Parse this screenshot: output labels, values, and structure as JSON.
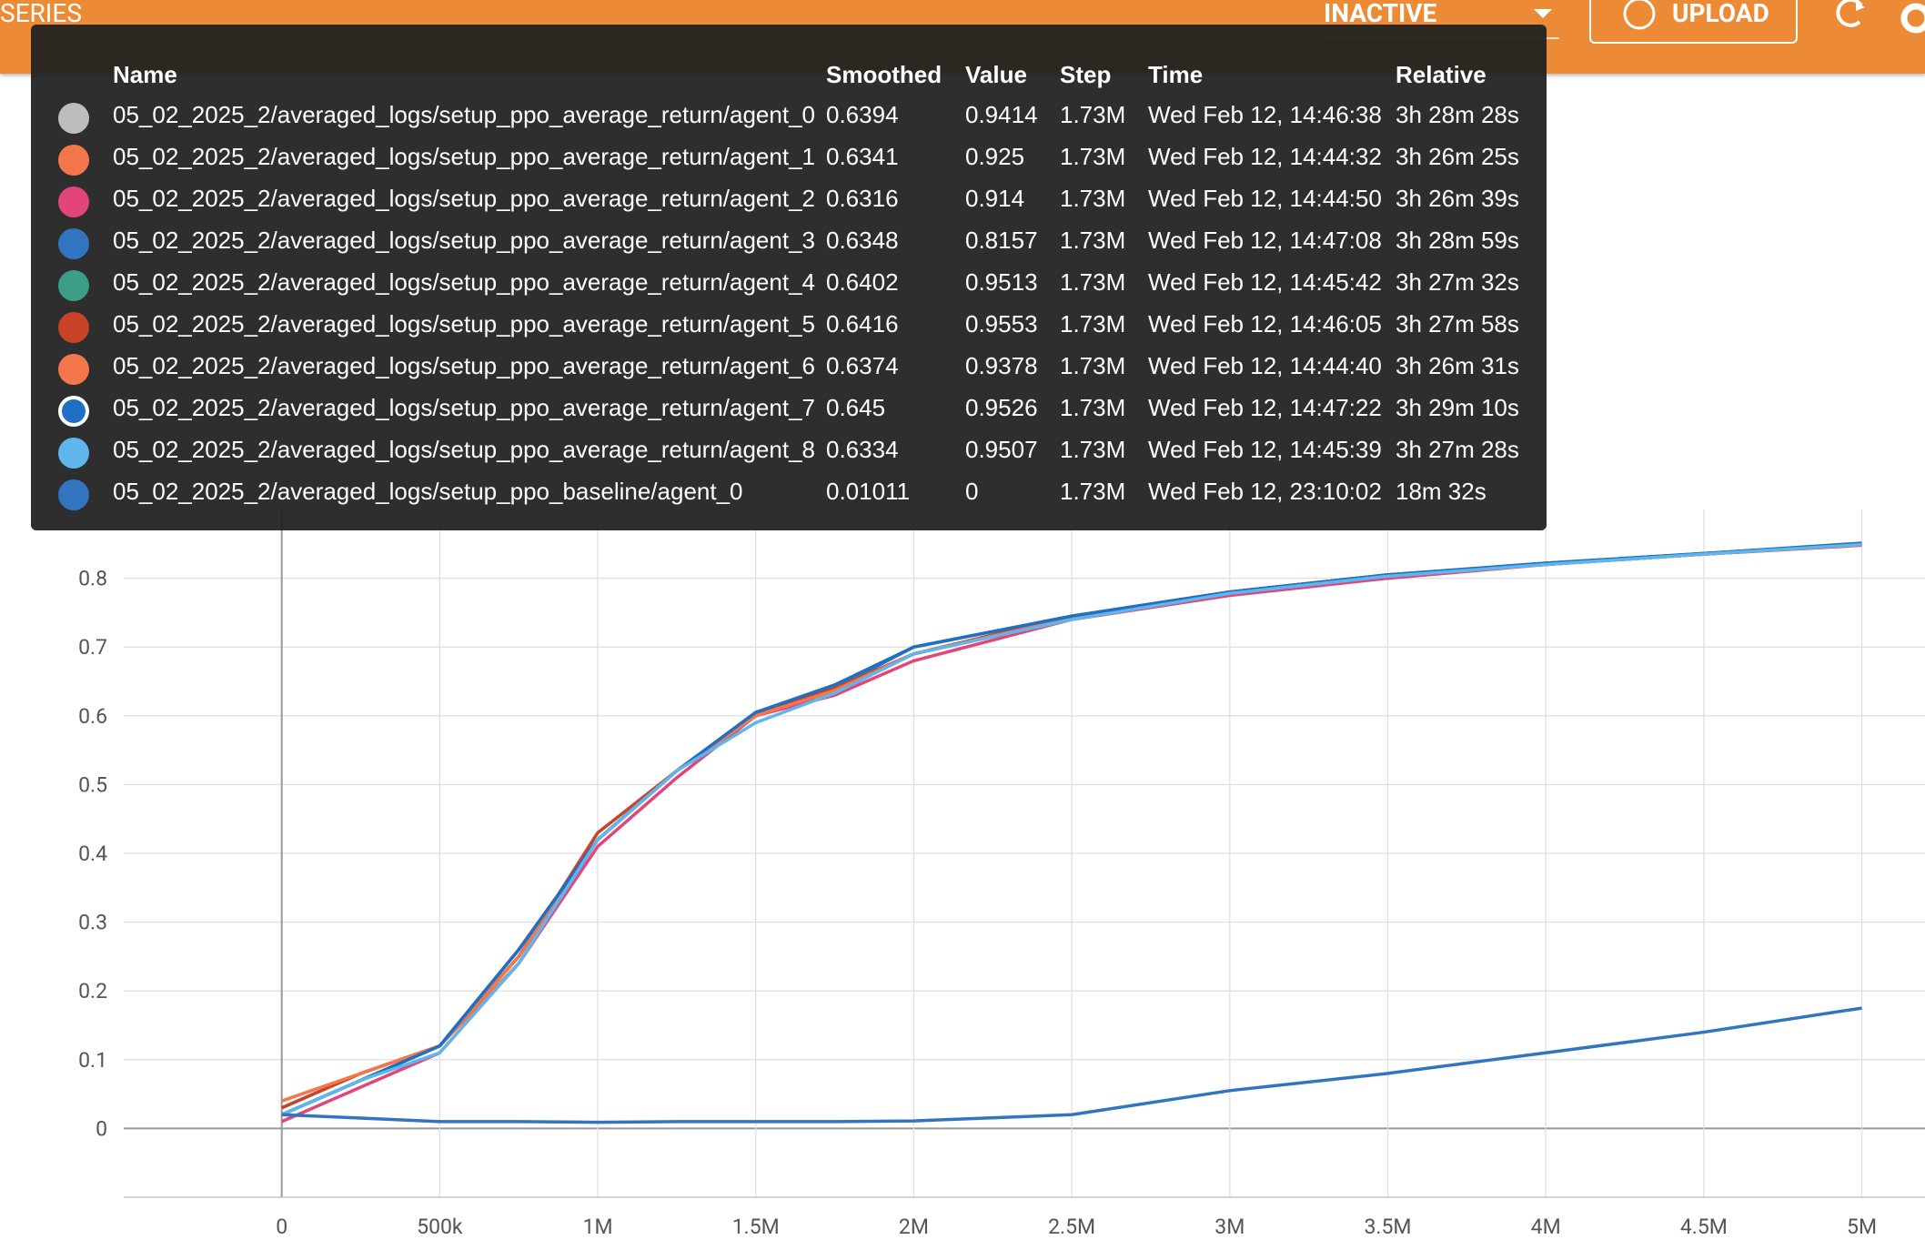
{
  "header": {
    "title": "SERIES",
    "status": "INACTIVE",
    "upload": "UPLOAD"
  },
  "tooltip": {
    "columns": [
      "Name",
      "Smoothed",
      "Value",
      "Step",
      "Time",
      "Relative"
    ],
    "rows": [
      {
        "color": "#bdbdbd",
        "name": "05_02_2025_2/averaged_logs/setup_ppo_average_return/agent_0",
        "smoothed": "0.6394",
        "value": "0.9414",
        "step": "1.73M",
        "time": "Wed Feb 12, 14:46:38",
        "relative": "3h 28m 28s"
      },
      {
        "color": "#f4774b",
        "name": "05_02_2025_2/averaged_logs/setup_ppo_average_return/agent_1",
        "smoothed": "0.6341",
        "value": "0.925",
        "step": "1.73M",
        "time": "Wed Feb 12, 14:44:32",
        "relative": "3h 26m 25s"
      },
      {
        "color": "#e3447a",
        "name": "05_02_2025_2/averaged_logs/setup_ppo_average_return/agent_2",
        "smoothed": "0.6316",
        "value": "0.914",
        "step": "1.73M",
        "time": "Wed Feb 12, 14:44:50",
        "relative": "3h 26m 39s"
      },
      {
        "color": "#3374c0",
        "name": "05_02_2025_2/averaged_logs/setup_ppo_average_return/agent_3",
        "smoothed": "0.6348",
        "value": "0.8157",
        "step": "1.73M",
        "time": "Wed Feb 12, 14:47:08",
        "relative": "3h 28m 59s"
      },
      {
        "color": "#3d9e88",
        "name": "05_02_2025_2/averaged_logs/setup_ppo_average_return/agent_4",
        "smoothed": "0.6402",
        "value": "0.9513",
        "step": "1.73M",
        "time": "Wed Feb 12, 14:45:42",
        "relative": "3h 27m 32s"
      },
      {
        "color": "#c84328",
        "name": "05_02_2025_2/averaged_logs/setup_ppo_average_return/agent_5",
        "smoothed": "0.6416",
        "value": "0.9553",
        "step": "1.73M",
        "time": "Wed Feb 12, 14:46:05",
        "relative": "3h 27m 58s"
      },
      {
        "color": "#f4774b",
        "name": "05_02_2025_2/averaged_logs/setup_ppo_average_return/agent_6",
        "smoothed": "0.6374",
        "value": "0.9378",
        "step": "1.73M",
        "time": "Wed Feb 12, 14:44:40",
        "relative": "3h 26m 31s"
      },
      {
        "color": "#1f6fc4",
        "name": "05_02_2025_2/averaged_logs/setup_ppo_average_return/agent_7",
        "smoothed": "0.645",
        "value": "0.9526",
        "step": "1.73M",
        "time": "Wed Feb 12, 14:47:22",
        "relative": "3h 29m 10s"
      },
      {
        "color": "#5fb6ec",
        "name": "05_02_2025_2/averaged_logs/setup_ppo_average_return/agent_8",
        "smoothed": "0.6334",
        "value": "0.9507",
        "step": "1.73M",
        "time": "Wed Feb 12, 14:45:39",
        "relative": "3h 27m 28s"
      },
      {
        "color": "#3374c0",
        "name": "05_02_2025_2/averaged_logs/setup_ppo_baseline/agent_0",
        "smoothed": "0.01011",
        "value": "0",
        "step": "1.73M",
        "time": "Wed Feb 12, 23:10:02",
        "relative": "18m 32s"
      }
    ]
  },
  "chart_data": {
    "type": "line",
    "x": [
      0,
      250000,
      500000,
      750000,
      1000000,
      1250000,
      1500000,
      1750000,
      2000000,
      2500000,
      3000000,
      3500000,
      4000000,
      4500000,
      5000000
    ],
    "series": [
      {
        "color": "#bdbdbd",
        "values": [
          0.02,
          0.07,
          0.12,
          0.25,
          0.42,
          0.52,
          0.6,
          0.64,
          0.69,
          0.745,
          0.78,
          0.805,
          0.82,
          0.835,
          0.85
        ]
      },
      {
        "color": "#f4774b",
        "values": [
          0.03,
          0.08,
          0.12,
          0.24,
          0.42,
          0.52,
          0.6,
          0.635,
          0.69,
          0.74,
          0.78,
          0.8,
          0.82,
          0.835,
          0.848
        ]
      },
      {
        "color": "#e3447a",
        "values": [
          0.01,
          0.06,
          0.11,
          0.24,
          0.41,
          0.51,
          0.6,
          0.63,
          0.68,
          0.74,
          0.775,
          0.8,
          0.82,
          0.835,
          0.848
        ]
      },
      {
        "color": "#3374c0",
        "values": [
          0.02,
          0.07,
          0.12,
          0.26,
          0.42,
          0.52,
          0.6,
          0.64,
          0.7,
          0.745,
          0.78,
          0.805,
          0.822,
          0.836,
          0.85
        ]
      },
      {
        "color": "#3d9e88",
        "values": [
          0.02,
          0.07,
          0.12,
          0.25,
          0.42,
          0.52,
          0.6,
          0.64,
          0.69,
          0.745,
          0.78,
          0.805,
          0.82,
          0.835,
          0.85
        ]
      },
      {
        "color": "#c84328",
        "values": [
          0.03,
          0.08,
          0.12,
          0.25,
          0.43,
          0.52,
          0.605,
          0.64,
          0.69,
          0.745,
          0.78,
          0.805,
          0.82,
          0.836,
          0.85
        ]
      },
      {
        "color": "#f4774b",
        "values": [
          0.04,
          0.08,
          0.12,
          0.25,
          0.42,
          0.52,
          0.6,
          0.637,
          0.69,
          0.742,
          0.78,
          0.803,
          0.82,
          0.835,
          0.849
        ]
      },
      {
        "color": "#1f6fc4",
        "values": [
          0.02,
          0.07,
          0.12,
          0.26,
          0.42,
          0.52,
          0.605,
          0.645,
          0.7,
          0.745,
          0.78,
          0.805,
          0.822,
          0.836,
          0.851
        ]
      },
      {
        "color": "#5fb6ec",
        "values": [
          0.02,
          0.07,
          0.11,
          0.24,
          0.42,
          0.52,
          0.59,
          0.633,
          0.69,
          0.74,
          0.778,
          0.803,
          0.82,
          0.835,
          0.849
        ]
      },
      {
        "color": "#3374c0",
        "values": [
          0.02,
          0.015,
          0.01,
          0.01,
          0.009,
          0.01,
          0.01,
          0.01,
          0.011,
          0.02,
          0.055,
          0.08,
          0.11,
          0.14,
          0.175
        ]
      }
    ],
    "xlim": [
      -500000,
      5200000
    ],
    "ylim": [
      -0.1,
      0.9
    ],
    "xticks": [
      0,
      {
        "value": 500000,
        "label": "500k"
      },
      {
        "value": 1000000,
        "label": "1M"
      },
      {
        "value": 1500000,
        "label": "1.5M"
      },
      {
        "value": 2000000,
        "label": "2M"
      },
      {
        "value": 2500000,
        "label": "2.5M"
      },
      {
        "value": 3000000,
        "label": "3M"
      },
      {
        "value": 3500000,
        "label": "3.5M"
      },
      {
        "value": 4000000,
        "label": "4M"
      },
      {
        "value": 4500000,
        "label": "4.5M"
      },
      {
        "value": 5000000,
        "label": "5M"
      }
    ],
    "yticks": [
      0,
      0.1,
      0.2,
      0.3,
      0.4,
      0.5,
      0.6,
      0.7,
      0.8
    ],
    "grid": true
  }
}
